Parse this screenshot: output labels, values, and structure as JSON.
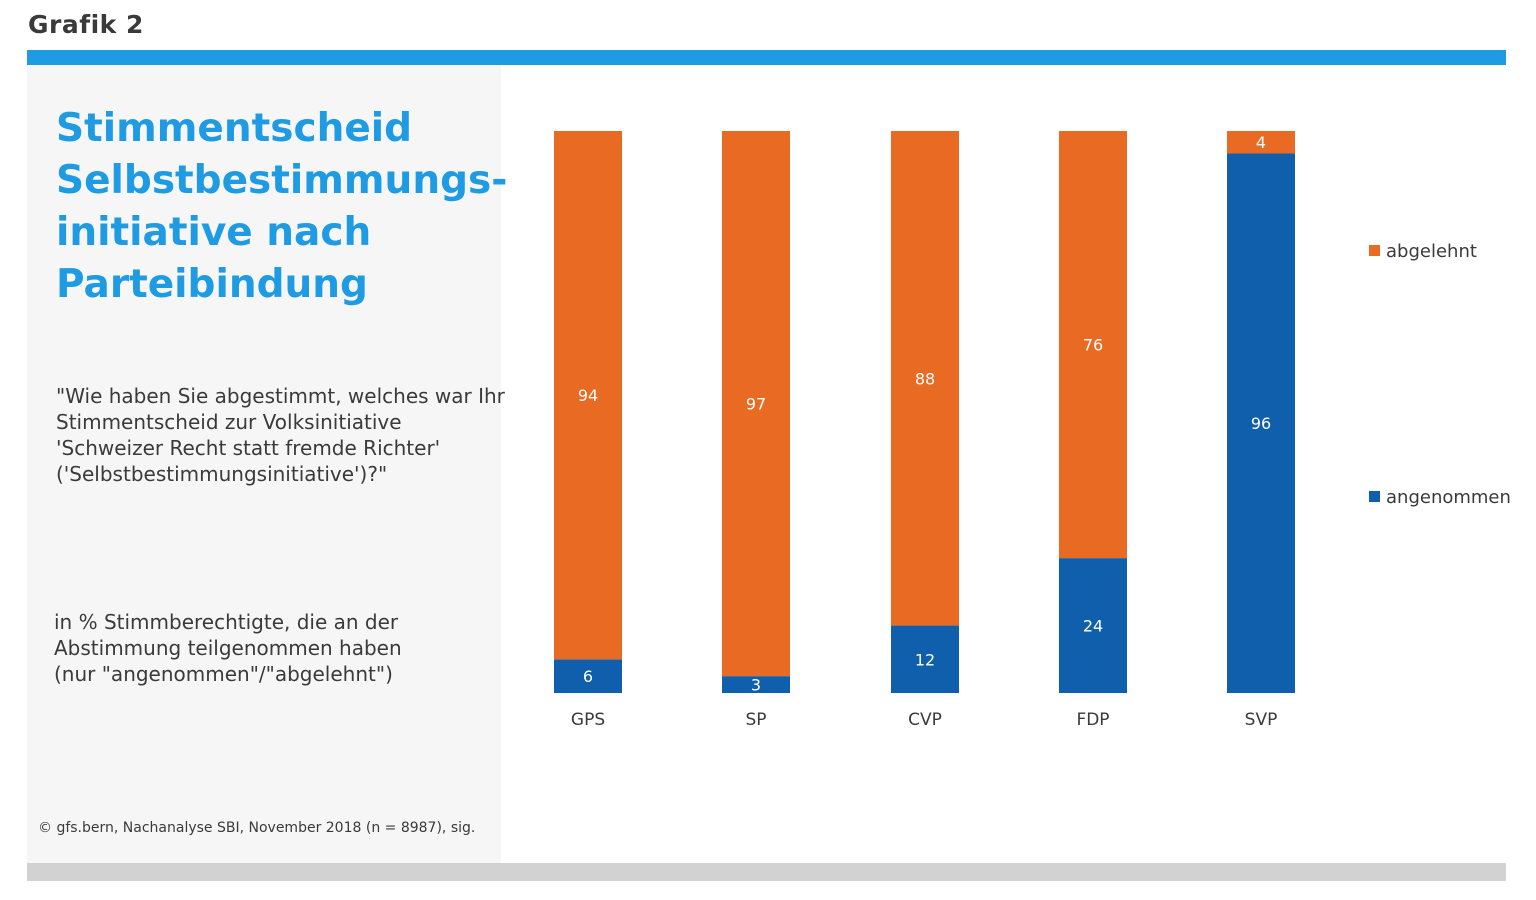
{
  "header": {
    "label": "Grafik 2"
  },
  "panel": {
    "title_lines": [
      "Stimmentscheid",
      "Selbstbestimmungs-",
      "initiative nach",
      "Parteibindung"
    ],
    "question_lines": [
      "\"Wie haben Sie abgestimmt, welches war Ihr",
      "Stimmentscheid zur Volksinitiative",
      "'Schweizer Recht statt fremde Richter'",
      "('Selbstbestimmungsinitiative')?\""
    ],
    "unit_lines": [
      "in % Stimmberechtigte, die an der",
      "Abstimmung teilgenommen haben",
      "(nur \"angenommen\"/\"abgelehnt\")"
    ],
    "source": "© gfs.bern, Nachanalyse SBI, November 2018 (n = 8987), sig."
  },
  "colors": {
    "accent": "#1f9be3",
    "abgelehnt": "#e96a23",
    "angenommen": "#0f5fad"
  },
  "chart_data": {
    "type": "bar",
    "stacked": true,
    "categories": [
      "GPS",
      "SP",
      "CVP",
      "FDP",
      "SVP"
    ],
    "series": [
      {
        "name": "angenommen",
        "values": [
          6,
          3,
          12,
          24,
          96
        ]
      },
      {
        "name": "abgelehnt",
        "values": [
          94,
          97,
          88,
          76,
          4
        ]
      }
    ],
    "ylim": [
      0,
      100
    ],
    "grid": false,
    "legend_position": "right"
  }
}
